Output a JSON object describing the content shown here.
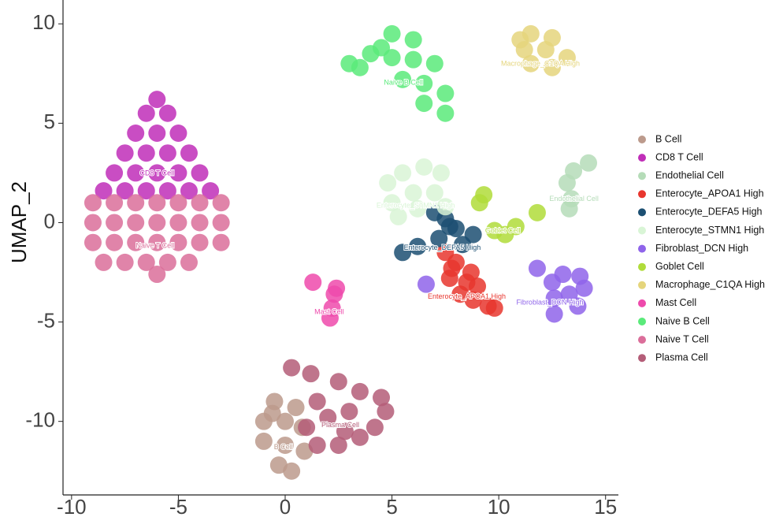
{
  "chart_data": {
    "type": "scatter",
    "ylabel": "UMAP_2",
    "xlim": [
      -10.4,
      15.6
    ],
    "ylim": [
      -13.7,
      11.2
    ],
    "xticks": [
      -10,
      -5,
      0,
      5,
      10,
      15
    ],
    "yticks": [
      -10,
      -5,
      0,
      5,
      10
    ],
    "grid": false,
    "legend": "right",
    "series": [
      {
        "name": "B Cell",
        "color": "#bc9a8c",
        "x": [
          -0.5,
          0.5,
          -1,
          0,
          0.8,
          -1,
          0,
          0.9,
          -0.3,
          0.3,
          -0.6
        ],
        "y": [
          -9,
          -9.3,
          -10,
          -10,
          -10.3,
          -11,
          -11.2,
          -11.5,
          -12.2,
          -12.5,
          -9.6
        ]
      },
      {
        "name": "CD8 T Cell",
        "color": "#c02eb8",
        "x": [
          -6,
          -6.5,
          -5.5,
          -7,
          -6,
          -5,
          -7.5,
          -6.5,
          -5.5,
          -4.5,
          -8,
          -7,
          -6,
          -5,
          -4,
          -8.5,
          -7.5,
          -6.5,
          -5.5,
          -4.5,
          -3.5
        ],
        "y": [
          6.2,
          5.5,
          5.5,
          4.5,
          4.5,
          4.5,
          3.5,
          3.5,
          3.5,
          3.5,
          2.5,
          2.5,
          2.5,
          2.5,
          2.5,
          1.6,
          1.6,
          1.6,
          1.6,
          1.6,
          1.6
        ]
      },
      {
        "name": "Endothelial Cell",
        "color": "#b5dcb8",
        "x": [
          13.5,
          13.2,
          13.4,
          13.3,
          14.2
        ],
        "y": [
          2.6,
          2,
          1.2,
          0.7,
          3
        ]
      },
      {
        "name": "Enterocyte_APOA1 High",
        "color": "#e8362e",
        "x": [
          7.5,
          8,
          7.7,
          8.5,
          9,
          8.8,
          9.5,
          9.8,
          8.2,
          7.8,
          8.7
        ],
        "y": [
          -1.5,
          -2,
          -2.8,
          -3,
          -3.2,
          -3.9,
          -4.2,
          -4.3,
          -3.6,
          -2.3,
          -2.5
        ]
      },
      {
        "name": "Enterocyte_DEFA5 High",
        "color": "#1c4f72",
        "x": [
          7,
          7.5,
          8,
          8.8,
          7.2,
          6.2,
          5.5,
          8.3,
          7.7
        ],
        "y": [
          0.5,
          0.2,
          -0.3,
          -0.6,
          -0.8,
          -1.2,
          -1.5,
          -1.1,
          -0.2
        ]
      },
      {
        "name": "Enterocyte_STMN1 High",
        "color": "#d9f5d6",
        "x": [
          5.5,
          6.5,
          7.3,
          5,
          6,
          7,
          5.3,
          6.2,
          4.8,
          7.5
        ],
        "y": [
          2.5,
          2.8,
          2.5,
          1,
          1.5,
          1.5,
          0.3,
          0.7,
          2,
          0.8
        ]
      },
      {
        "name": "Fibroblast_DCN High",
        "color": "#8f64ea",
        "x": [
          12.5,
          13,
          13.8,
          14,
          13.3,
          12.6,
          13.7,
          11.8,
          6.6,
          12.6
        ],
        "y": [
          -3,
          -2.6,
          -2.7,
          -3.3,
          -3.6,
          -3.8,
          -4.2,
          -2.3,
          -3.1,
          -4.6
        ]
      },
      {
        "name": "Goblet Cell",
        "color": "#b0dc3a",
        "x": [
          9.3,
          9.1,
          11.8,
          10.8,
          10.3,
          9.8
        ],
        "y": [
          1.4,
          1,
          0.5,
          -0.2,
          -0.6,
          -0.4
        ]
      },
      {
        "name": "Macrophage_C1QA High",
        "color": "#e5d57c",
        "x": [
          11.5,
          12.5,
          11.2,
          12.2,
          13.2,
          11.5,
          12.5,
          11
        ],
        "y": [
          9.5,
          9.3,
          8.7,
          8.7,
          8.3,
          8,
          7.8,
          9.2
        ]
      },
      {
        "name": "Mast Cell",
        "color": "#ee4aac",
        "x": [
          2.3,
          2.2,
          2.1,
          1.3,
          2.4
        ],
        "y": [
          -3.6,
          -4.3,
          -4.8,
          -3,
          -3.3
        ]
      },
      {
        "name": "Naive B Cell",
        "color": "#5aea7a",
        "x": [
          3,
          4,
          5,
          6,
          5,
          6,
          7,
          5.5,
          6.5,
          7.5,
          6.5,
          7.5,
          4.5,
          3.5
        ],
        "y": [
          8,
          8.5,
          9.5,
          9.2,
          8.3,
          8.2,
          8,
          7.2,
          7,
          6.5,
          6,
          5.5,
          8.8,
          7.8
        ]
      },
      {
        "name": "Naive T Cell",
        "color": "#db6e9a",
        "x": [
          -9,
          -8,
          -7,
          -6,
          -5,
          -4,
          -3,
          -9,
          -8,
          -7,
          -6,
          -5,
          -4,
          -3,
          -9,
          -8,
          -7,
          -6,
          -5,
          -4,
          -3,
          -8.5,
          -7.5,
          -6.5,
          -5.5,
          -4.5,
          -6
        ],
        "y": [
          1,
          1,
          1,
          1,
          1,
          1,
          1,
          0,
          0,
          0,
          0,
          0,
          0,
          0,
          -1,
          -1,
          -1,
          -1,
          -1,
          -1,
          -1,
          -2,
          -2,
          -2,
          -2,
          -2,
          -2.6
        ]
      },
      {
        "name": "Plasma Cell",
        "color": "#b45d78",
        "x": [
          0.3,
          1.2,
          2.5,
          3.5,
          4.5,
          4.7,
          4.2,
          3.5,
          2.5,
          1.5,
          2,
          3,
          1.5,
          1,
          2.8
        ],
        "y": [
          -7.3,
          -7.6,
          -8,
          -8.5,
          -8.8,
          -9.5,
          -10.3,
          -10.8,
          -11.2,
          -11.2,
          -9.8,
          -9.5,
          -9,
          -10.3,
          -10.5
        ]
      }
    ]
  }
}
